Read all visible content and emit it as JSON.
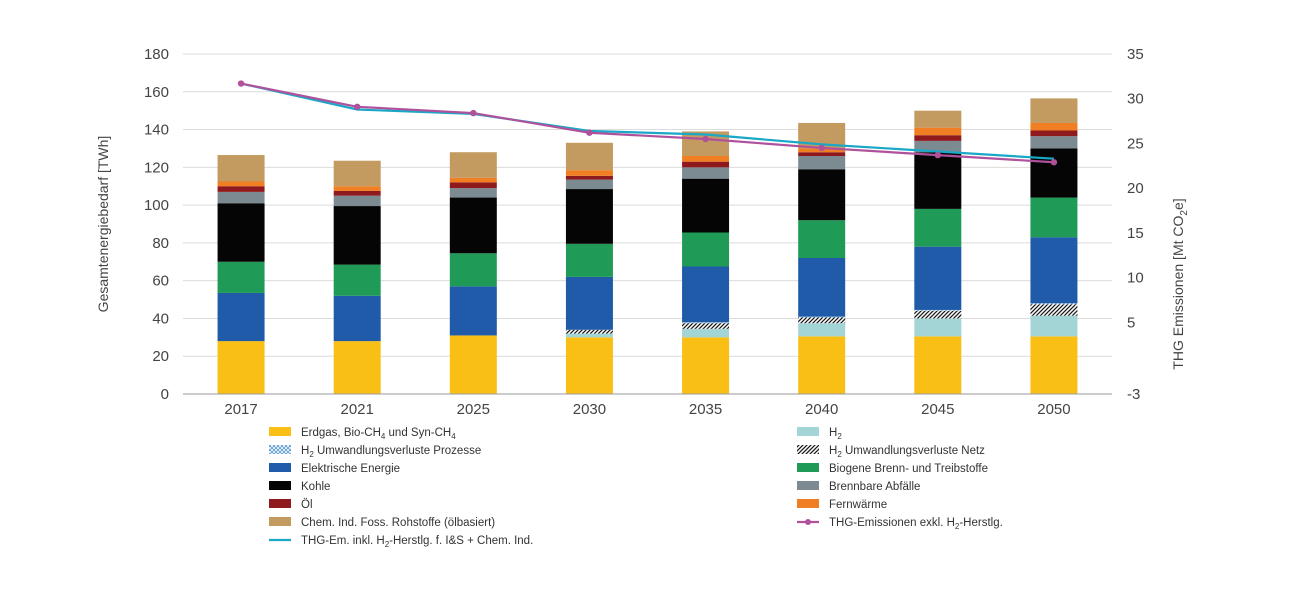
{
  "chart_data": {
    "type": "bar",
    "stacked": true,
    "categories": [
      "2017",
      "2021",
      "2025",
      "2030",
      "2035",
      "2040",
      "2045",
      "2050"
    ],
    "ylabel": "Gesamtenergiebedarf [TWh]",
    "ylim": [
      0,
      180
    ],
    "yticks": [
      "0",
      "20",
      "40",
      "60",
      "80",
      "100",
      "120",
      "140",
      "160",
      "180"
    ],
    "y2label": "THG Emissionen [Mt CO2e]",
    "y2label_parts": {
      "main": "THG Emissionen [Mt CO",
      "sub": "2",
      "tail": "e]"
    },
    "y2lim": [
      -3,
      35
    ],
    "y2ticks": [
      "-3",
      "5",
      "10",
      "15",
      "20",
      "25",
      "30",
      "35"
    ],
    "y2tick_values": [
      -3,
      5,
      10,
      15,
      20,
      25,
      30,
      35
    ],
    "grid": true,
    "legend_position": "bottom",
    "series": [
      {
        "name": "Erdgas, Bio-CH4 und Syn-CH4",
        "color": "#f9bf15",
        "pattern": "none",
        "values": [
          28,
          28,
          31,
          30,
          30,
          30.5,
          30.5,
          30.5
        ]
      },
      {
        "name": "H2",
        "color": "#a3d4d6",
        "pattern": "none",
        "values": [
          0,
          0,
          0,
          2,
          4.5,
          7,
          9.5,
          11
        ]
      },
      {
        "name": "H2 Umwandlungsverluste Netz",
        "color": "#1a1a1a",
        "pattern": "diag",
        "values": [
          0,
          0,
          0,
          2,
          3,
          3,
          4,
          6
        ]
      },
      {
        "name": "H2 Umwandlungsverluste Prozesse",
        "color": "#5b9bd5",
        "pattern": "cross",
        "values": [
          0,
          0,
          0,
          0,
          0.5,
          0.5,
          0.5,
          0.5
        ]
      },
      {
        "name": "Elektrische Energie",
        "color": "#1f5ba8",
        "pattern": "none",
        "values": [
          25.5,
          24,
          26,
          28,
          29.5,
          31,
          33.5,
          35
        ]
      },
      {
        "name": "Biogene Brenn- und Treibstoffe",
        "color": "#1f9b57",
        "pattern": "none",
        "values": [
          16.5,
          16.5,
          17.5,
          17.5,
          18,
          20,
          20,
          21
        ]
      },
      {
        "name": "Kohle",
        "color": "#050505",
        "pattern": "none",
        "values": [
          31,
          31,
          29.5,
          29,
          28.5,
          27,
          30,
          26
        ]
      },
      {
        "name": "Brennbare Abfälle",
        "color": "#7b8b91",
        "pattern": "none",
        "values": [
          6,
          5.5,
          5,
          5,
          6,
          7,
          6,
          6.5
        ]
      },
      {
        "name": "Öl",
        "color": "#8f1a1e",
        "pattern": "none",
        "values": [
          3,
          2.5,
          3,
          2,
          3,
          2,
          3,
          3
        ]
      },
      {
        "name": "Fernwärme",
        "color": "#ef7f22",
        "pattern": "none",
        "values": [
          2.5,
          2.5,
          2.5,
          3,
          3,
          2,
          4,
          4
        ]
      },
      {
        "name": "Chem. Ind. Foss. Rohstoffe (ölbasiert)",
        "color": "#c39a5f",
        "pattern": "none",
        "values": [
          14,
          13.5,
          13.5,
          14.5,
          13,
          13.5,
          9,
          13
        ]
      }
    ],
    "lines": [
      {
        "name": "THG-Em. inkl. H2-Herstlg. f. I&S + Chem. Ind.",
        "color": "#1ba7c6",
        "axis": "y2",
        "markers": false,
        "values": [
          31.7,
          28.8,
          28.3,
          26.4,
          26,
          24.9,
          24.1,
          23.3
        ]
      },
      {
        "name": "THG-Emissionen exkl. H2-Herstlg.",
        "color": "#b0519c",
        "axis": "y2",
        "markers": true,
        "values": [
          31.7,
          29.1,
          28.4,
          26.2,
          25.5,
          24.5,
          23.7,
          22.9
        ]
      }
    ],
    "legend": [
      {
        "key": "erdgas",
        "kind": "box",
        "color": "#f9bf15",
        "pattern": "none",
        "parts": [
          "Erdgas, Bio-CH",
          "4",
          " und Syn-CH",
          "4"
        ]
      },
      {
        "key": "h2",
        "kind": "box",
        "color": "#a3d4d6",
        "pattern": "none",
        "parts": [
          "H",
          "2"
        ]
      },
      {
        "key": "h2-prozesse",
        "kind": "box",
        "color": "#5b9bd5",
        "pattern": "cross",
        "parts": [
          "H",
          "2",
          " Umwandlungsverluste Prozesse"
        ]
      },
      {
        "key": "h2-netz",
        "kind": "box",
        "color": "#1a1a1a",
        "pattern": "diag",
        "parts": [
          "H",
          "2",
          " Umwandlungsverluste Netz"
        ]
      },
      {
        "key": "elektrisch",
        "kind": "box",
        "color": "#1f5ba8",
        "pattern": "none",
        "parts": [
          "Elektrische Energie"
        ]
      },
      {
        "key": "biogen",
        "kind": "box",
        "color": "#1f9b57",
        "pattern": "none",
        "parts": [
          "Biogene Brenn- und Treibstoffe"
        ]
      },
      {
        "key": "kohle",
        "kind": "box",
        "color": "#050505",
        "pattern": "none",
        "parts": [
          "Kohle"
        ]
      },
      {
        "key": "abfaelle",
        "kind": "box",
        "color": "#7b8b91",
        "pattern": "none",
        "parts": [
          "Brennbare Abfälle"
        ]
      },
      {
        "key": "oel",
        "kind": "box",
        "color": "#8f1a1e",
        "pattern": "none",
        "parts": [
          "Öl"
        ]
      },
      {
        "key": "fernwaerme",
        "kind": "box",
        "color": "#ef7f22",
        "pattern": "none",
        "parts": [
          "Fernwärme"
        ]
      },
      {
        "key": "chem",
        "kind": "box",
        "color": "#c39a5f",
        "pattern": "none",
        "parts": [
          "Chem. Ind. Foss. Rohstoffe (ölbasiert)"
        ]
      },
      {
        "key": "thg-exkl",
        "kind": "line-marker",
        "color": "#b0519c",
        "pattern": "none",
        "parts": [
          "THG-Emissionen exkl. H",
          "2",
          "-Herstlg."
        ]
      },
      {
        "key": "thg-inkl",
        "kind": "line",
        "color": "#1ba7c6",
        "pattern": "none",
        "parts": [
          "THG-Em. inkl. H",
          "2",
          "-Herstlg. f. I&S + Chem. Ind."
        ]
      }
    ]
  }
}
